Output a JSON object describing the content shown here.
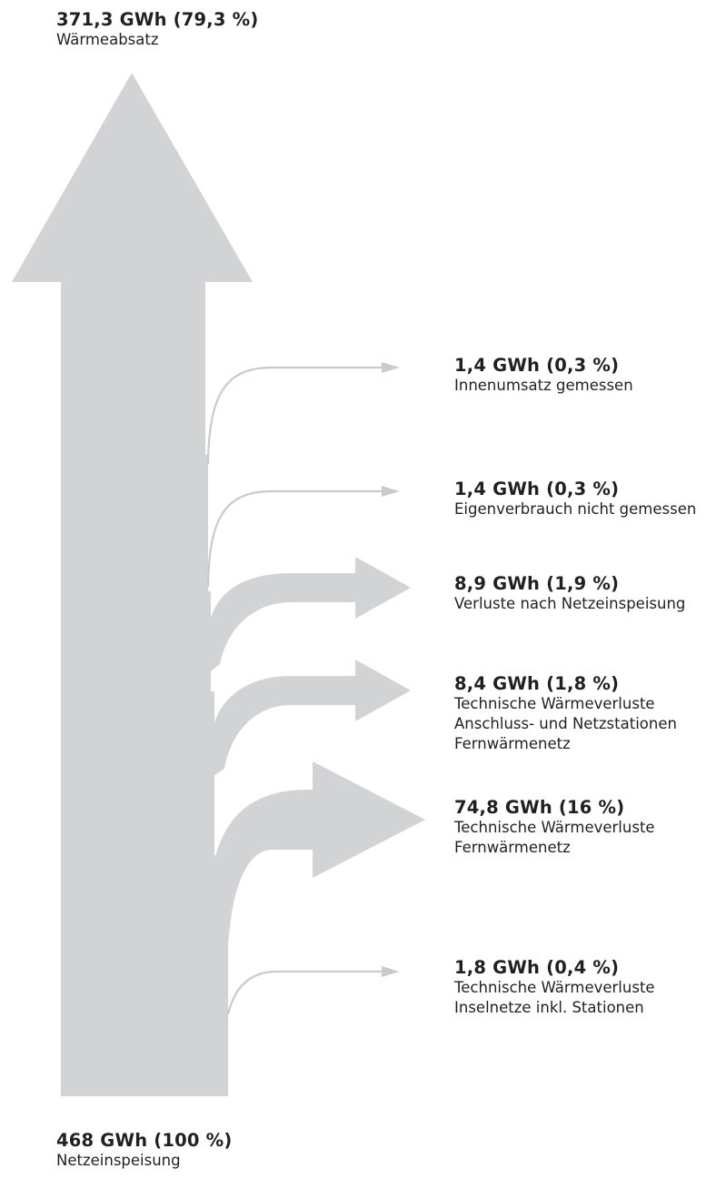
{
  "top": {
    "value": "371,3 GWh (79,3 %)",
    "label": "Wärmeabsatz"
  },
  "bottom": {
    "value": "468 GWh (100 %)",
    "label": "Netzeinspeisung"
  },
  "branches": [
    {
      "value": "1,4 GWh (0,3 %)",
      "lines": [
        "Innenumsatz gemessen"
      ]
    },
    {
      "value": "1,4 GWh (0,3 %)",
      "lines": [
        "Eigenverbrauch nicht gemessen"
      ]
    },
    {
      "value": "8,9 GWh (1,9 %)",
      "lines": [
        "Verluste nach Netzeinspeisung"
      ]
    },
    {
      "value": "8,4 GWh (1,8 %)",
      "lines": [
        "Technische Wärmeverluste",
        "Anschluss- und Netzstationen",
        "Fernwärmenetz"
      ]
    },
    {
      "value": "74,8 GWh (16 %)",
      "lines": [
        "Technische Wärmeverluste",
        "Fernwärmenetz"
      ]
    },
    {
      "value": "1,8 GWh (0,4 %)",
      "lines": [
        "Technische Wärmeverluste",
        "Inselnetze inkl. Stationen"
      ]
    }
  ],
  "colors": {
    "flow": "#d2d3d5",
    "thin_line": "#c9cacc",
    "text": "#231f20"
  }
}
